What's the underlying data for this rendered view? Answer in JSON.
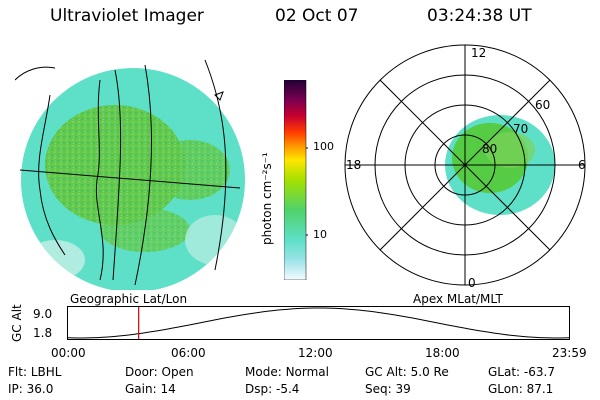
{
  "header": {
    "title": "Ultraviolet Imager",
    "date": "02 Oct 07",
    "time": "03:24:38 UT"
  },
  "map": {
    "label": "Geographic Lat/Lon"
  },
  "colorbar": {
    "unit_label": "photon cm⁻²s⁻¹",
    "ticks": [
      "100",
      "10"
    ]
  },
  "polar": {
    "label": "Apex  MLat/MLT",
    "mlt_labels": {
      "top": "12",
      "right": "6",
      "bottom": "0",
      "left": "18"
    },
    "lat_labels": [
      "60",
      "70",
      "80"
    ]
  },
  "timeline": {
    "axis_label": "GC Alt",
    "y_ticks": [
      "9.0",
      "1.8"
    ],
    "x_ticks": [
      "00:00",
      "06:00",
      "12:00",
      "18:00",
      "23:59"
    ],
    "current_time_fraction": 0.1418
  },
  "info": {
    "row1": [
      {
        "key": "Flt:",
        "value": "LBHL"
      },
      {
        "key": "Door:",
        "value": "Open"
      },
      {
        "key": "Mode:",
        "value": "Normal"
      },
      {
        "key": "GC Alt:",
        "value": "5.0 Re"
      },
      {
        "key": "GLat:",
        "value": "-63.7"
      }
    ],
    "row2": [
      {
        "key": "IP:",
        "value": "36.0"
      },
      {
        "key": "Gain:",
        "value": "14"
      },
      {
        "key": "Dsp:",
        "value": "-5.4"
      },
      {
        "key": "Seq:",
        "value": "39"
      },
      {
        "key": "GLon:",
        "value": "87.1"
      }
    ]
  },
  "colors": {
    "background": "#ffffff",
    "aurora_green": "#55cc44",
    "aurora_cyan": "#5ee0c8",
    "marker_red": "#cc0000"
  }
}
